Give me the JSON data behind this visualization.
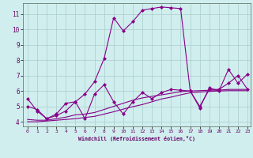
{
  "xlabel": "Windchill (Refroidissement éolien,°C)",
  "bg_color": "#d0eeee",
  "grid_color": "#aacccc",
  "line_color1": "#880088",
  "line_color2": "#aa00aa",
  "line_color3": "#cc00cc",
  "line_color4": "#ee00ee",
  "xlim": [
    -0.5,
    23.3
  ],
  "ylim": [
    3.7,
    11.7
  ],
  "xticks": [
    0,
    1,
    2,
    3,
    4,
    5,
    6,
    7,
    8,
    9,
    10,
    11,
    12,
    13,
    14,
    15,
    16,
    17,
    18,
    19,
    20,
    21,
    22,
    23
  ],
  "yticks": [
    4,
    5,
    6,
    7,
    8,
    9,
    10,
    11
  ],
  "s1_x": [
    0,
    1,
    2,
    3,
    4,
    5,
    6,
    7,
    8,
    9,
    10,
    11,
    12,
    13,
    14,
    15,
    16,
    17,
    18,
    19,
    20,
    21,
    22,
    23
  ],
  "s1_y": [
    5.5,
    4.7,
    4.2,
    4.4,
    4.7,
    5.3,
    5.8,
    6.6,
    8.1,
    10.75,
    9.9,
    10.5,
    11.25,
    11.35,
    11.45,
    11.4,
    11.35,
    6.0,
    5.0,
    6.1,
    6.1,
    6.5,
    7.0,
    6.1
  ],
  "s2_x": [
    0,
    1,
    2,
    3,
    4,
    5,
    6,
    7,
    8,
    9,
    10,
    11,
    12,
    13,
    14,
    15,
    16,
    17,
    18,
    19,
    20,
    21,
    22,
    23
  ],
  "s2_y": [
    5.0,
    4.8,
    4.2,
    4.5,
    5.2,
    5.3,
    4.2,
    5.8,
    6.4,
    5.3,
    4.5,
    5.3,
    5.9,
    5.5,
    5.9,
    6.1,
    6.05,
    6.0,
    4.9,
    6.2,
    6.0,
    7.4,
    6.5,
    7.1
  ],
  "s3_x": [
    0,
    1,
    2,
    3,
    4,
    5,
    6,
    7,
    8,
    9,
    10,
    11,
    12,
    13,
    14,
    15,
    16,
    17,
    18,
    19,
    20,
    21,
    22,
    23
  ],
  "s3_y": [
    4.15,
    4.1,
    4.1,
    4.2,
    4.3,
    4.45,
    4.5,
    4.6,
    4.8,
    5.0,
    5.2,
    5.4,
    5.55,
    5.65,
    5.75,
    5.85,
    5.95,
    6.0,
    6.02,
    6.05,
    6.05,
    6.1,
    6.1,
    6.1
  ],
  "s4_x": [
    0,
    1,
    2,
    3,
    4,
    5,
    6,
    7,
    8,
    9,
    10,
    11,
    12,
    13,
    14,
    15,
    16,
    17,
    18,
    19,
    20,
    21,
    22,
    23
  ],
  "s4_y": [
    4.0,
    4.0,
    4.05,
    4.1,
    4.15,
    4.2,
    4.28,
    4.35,
    4.5,
    4.65,
    4.82,
    4.98,
    5.12,
    5.3,
    5.48,
    5.6,
    5.75,
    5.88,
    5.93,
    5.97,
    6.0,
    6.02,
    6.02,
    6.02
  ]
}
